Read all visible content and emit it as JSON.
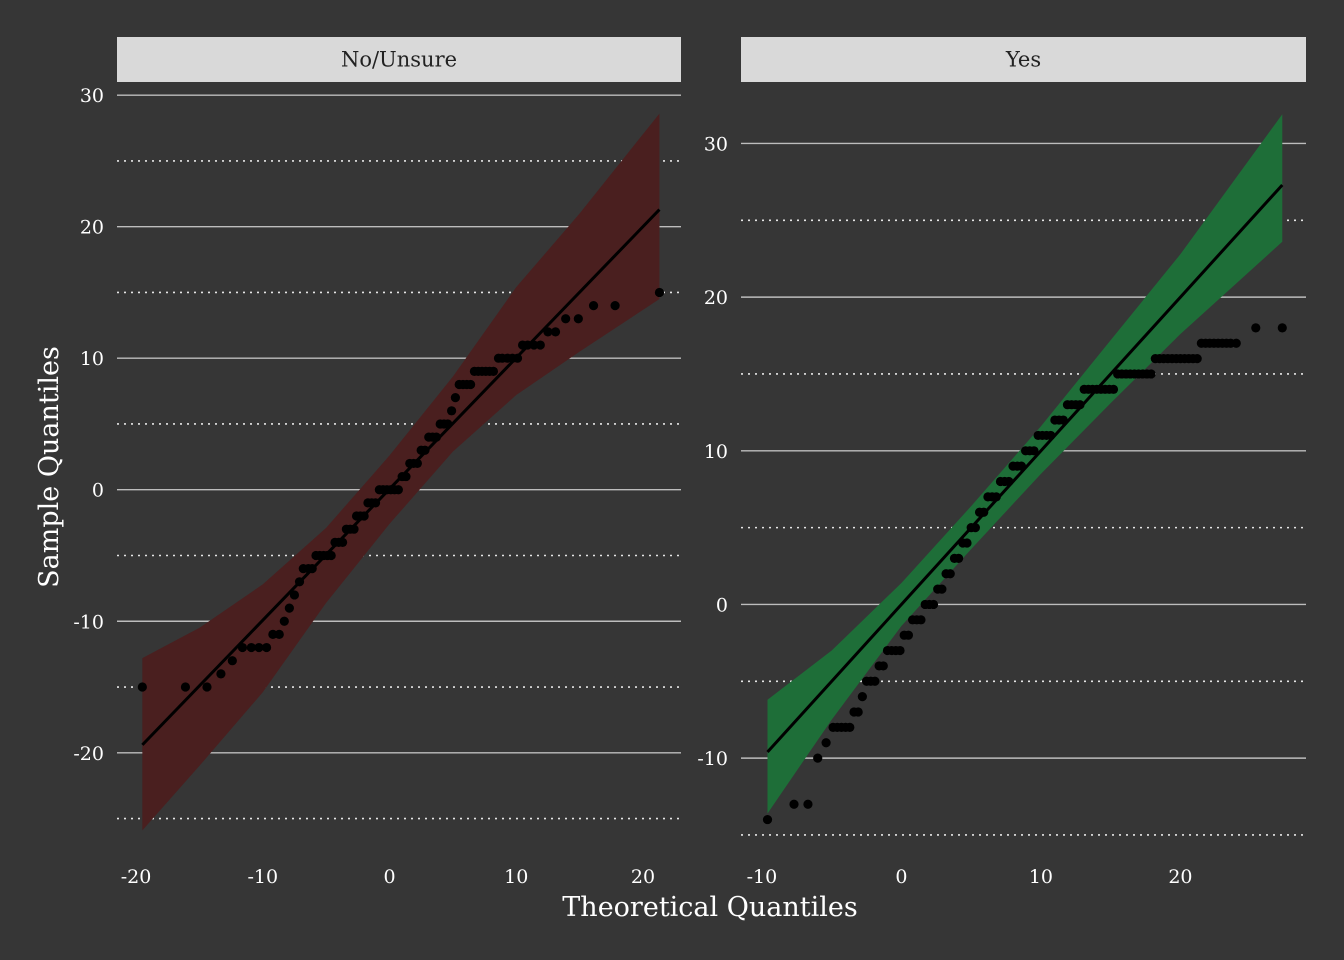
{
  "xlabel": "Theoretical Quantiles",
  "ylabel": "Sample Quantiles",
  "colors": {
    "background": "#363636",
    "strip": "#d9d9d9",
    "grid_major": "#bdbdbd",
    "grid_minor": "#e6e6e6",
    "points": "#000000",
    "line": "#000000"
  },
  "chart_data": [
    {
      "type": "scatter",
      "panel": "No/Unsure",
      "band_color": "#4a1f1f",
      "xlim": [
        -21.5,
        23
      ],
      "ylim": [
        -28,
        31
      ],
      "xticks": [
        -20,
        -10,
        0,
        10,
        20
      ],
      "yticks": [
        -20,
        -10,
        0,
        10,
        20,
        30
      ],
      "yminor": [
        -25,
        -15,
        -5,
        5,
        15,
        25
      ],
      "line": {
        "x": [
          -19.5,
          21.3
        ],
        "y": [
          -19.4,
          21.3
        ]
      },
      "band": [
        {
          "x": -19.5,
          "lo": -25.9,
          "hi": -12.8
        },
        {
          "x": -15,
          "lo": -21.0,
          "hi": -10.5
        },
        {
          "x": -10,
          "lo": -15.4,
          "hi": -7.2
        },
        {
          "x": -5,
          "lo": -8.6,
          "hi": -2.9
        },
        {
          "x": 0,
          "lo": -2.6,
          "hi": 2.6
        },
        {
          "x": 5,
          "lo": 2.9,
          "hi": 8.6
        },
        {
          "x": 10,
          "lo": 7.2,
          "hi": 15.4
        },
        {
          "x": 15,
          "lo": 10.5,
          "hi": 21.0
        },
        {
          "x": 21.3,
          "lo": 14.5,
          "hi": 28.6
        }
      ],
      "points": [
        [
          -19.5,
          -15
        ],
        [
          -16.1,
          -15
        ],
        [
          -14.4,
          -15
        ],
        [
          -13.3,
          -14
        ],
        [
          -12.4,
          -13
        ],
        [
          -11.6,
          -12
        ],
        [
          -10.9,
          -12
        ],
        [
          -10.3,
          -12
        ],
        [
          -9.7,
          -12
        ],
        [
          -9.2,
          -11
        ],
        [
          -8.7,
          -11
        ],
        [
          -8.3,
          -10
        ],
        [
          -7.9,
          -9
        ],
        [
          -7.5,
          -8
        ],
        [
          -7.1,
          -7
        ],
        [
          -6.8,
          -6
        ],
        [
          -6.4,
          -6
        ],
        [
          -6.1,
          -6
        ],
        [
          -5.8,
          -5
        ],
        [
          -5.5,
          -5
        ],
        [
          -5.2,
          -5
        ],
        [
          -4.9,
          -5
        ],
        [
          -4.6,
          -5
        ],
        [
          -4.3,
          -4
        ],
        [
          -4.0,
          -4
        ],
        [
          -3.7,
          -4
        ],
        [
          -3.4,
          -3
        ],
        [
          -3.1,
          -3
        ],
        [
          -2.8,
          -3
        ],
        [
          -2.6,
          -2
        ],
        [
          -2.3,
          -2
        ],
        [
          -2.0,
          -2
        ],
        [
          -1.7,
          -1
        ],
        [
          -1.4,
          -1
        ],
        [
          -1.1,
          -1
        ],
        [
          -0.8,
          0
        ],
        [
          -0.5,
          0
        ],
        [
          -0.2,
          0
        ],
        [
          0.1,
          0
        ],
        [
          0.4,
          0
        ],
        [
          0.7,
          0
        ],
        [
          1.0,
          1
        ],
        [
          1.3,
          1
        ],
        [
          1.6,
          2
        ],
        [
          1.9,
          2
        ],
        [
          2.2,
          2
        ],
        [
          2.5,
          3
        ],
        [
          2.8,
          3
        ],
        [
          3.1,
          4
        ],
        [
          3.4,
          4
        ],
        [
          3.7,
          4
        ],
        [
          4.0,
          5
        ],
        [
          4.3,
          5
        ],
        [
          4.6,
          5
        ],
        [
          4.9,
          6
        ],
        [
          5.2,
          7
        ],
        [
          5.5,
          8
        ],
        [
          5.8,
          8
        ],
        [
          6.1,
          8
        ],
        [
          6.4,
          8
        ],
        [
          6.7,
          9
        ],
        [
          7.0,
          9
        ],
        [
          7.3,
          9
        ],
        [
          7.6,
          9
        ],
        [
          7.9,
          9
        ],
        [
          8.2,
          9
        ],
        [
          8.6,
          10
        ],
        [
          8.9,
          10
        ],
        [
          9.3,
          10
        ],
        [
          9.7,
          10
        ],
        [
          10.1,
          10
        ],
        [
          10.5,
          11
        ],
        [
          10.9,
          11
        ],
        [
          11.4,
          11
        ],
        [
          11.9,
          11
        ],
        [
          12.5,
          12
        ],
        [
          13.1,
          12
        ],
        [
          13.9,
          13
        ],
        [
          14.9,
          13
        ],
        [
          16.1,
          14
        ],
        [
          17.8,
          14
        ],
        [
          21.3,
          15
        ]
      ]
    },
    {
      "type": "scatter",
      "panel": "Yes",
      "band_color": "#1e6e38",
      "xlim": [
        -11.5,
        29
      ],
      "ylim": [
        -16.5,
        34
      ],
      "xticks": [
        -10,
        0,
        10,
        20
      ],
      "yticks": [
        -10,
        0,
        10,
        20,
        30
      ],
      "yminor": [
        -15,
        -5,
        5,
        15,
        25
      ],
      "line": {
        "x": [
          -9.6,
          27.3
        ],
        "y": [
          -9.6,
          27.3
        ]
      },
      "band": [
        {
          "x": -9.6,
          "lo": -13.6,
          "hi": -6.2
        },
        {
          "x": -5,
          "lo": -7.5,
          "hi": -3.0
        },
        {
          "x": 0,
          "lo": -1.4,
          "hi": 1.4
        },
        {
          "x": 5,
          "lo": 3.6,
          "hi": 6.4
        },
        {
          "x": 10,
          "lo": 8.5,
          "hi": 11.6
        },
        {
          "x": 15,
          "lo": 13.1,
          "hi": 17.2
        },
        {
          "x": 20,
          "lo": 17.6,
          "hi": 22.8
        },
        {
          "x": 27.3,
          "lo": 23.6,
          "hi": 31.9
        }
      ],
      "points": [
        [
          -9.6,
          -14
        ],
        [
          -7.7,
          -13
        ],
        [
          -6.7,
          -13
        ],
        [
          -6.0,
          -10
        ],
        [
          -5.4,
          -9
        ],
        [
          -4.9,
          -8
        ],
        [
          -4.6,
          -8
        ],
        [
          -4.3,
          -8
        ],
        [
          -4.0,
          -8
        ],
        [
          -3.7,
          -8
        ],
        [
          -3.4,
          -7
        ],
        [
          -3.1,
          -7
        ],
        [
          -2.8,
          -6
        ],
        [
          -2.5,
          -5
        ],
        [
          -2.2,
          -5
        ],
        [
          -1.9,
          -5
        ],
        [
          -1.6,
          -4
        ],
        [
          -1.3,
          -4
        ],
        [
          -1.0,
          -3
        ],
        [
          -0.7,
          -3
        ],
        [
          -0.4,
          -3
        ],
        [
          -0.1,
          -3
        ],
        [
          0.2,
          -2
        ],
        [
          0.5,
          -2
        ],
        [
          0.8,
          -1
        ],
        [
          1.1,
          -1
        ],
        [
          1.4,
          -1
        ],
        [
          1.7,
          0
        ],
        [
          2.0,
          0
        ],
        [
          2.3,
          0
        ],
        [
          2.6,
          1
        ],
        [
          2.9,
          1
        ],
        [
          3.2,
          2
        ],
        [
          3.5,
          2
        ],
        [
          3.8,
          3
        ],
        [
          4.1,
          3
        ],
        [
          4.4,
          4
        ],
        [
          4.7,
          4
        ],
        [
          5.0,
          5
        ],
        [
          5.3,
          5
        ],
        [
          5.6,
          6
        ],
        [
          5.9,
          6
        ],
        [
          6.2,
          7
        ],
        [
          6.5,
          7
        ],
        [
          6.8,
          7
        ],
        [
          7.1,
          8
        ],
        [
          7.4,
          8
        ],
        [
          7.7,
          8
        ],
        [
          8.0,
          9
        ],
        [
          8.3,
          9
        ],
        [
          8.6,
          9
        ],
        [
          8.9,
          10
        ],
        [
          9.2,
          10
        ],
        [
          9.5,
          10
        ],
        [
          9.8,
          11
        ],
        [
          10.1,
          11
        ],
        [
          10.4,
          11
        ],
        [
          10.7,
          11
        ],
        [
          11.0,
          12
        ],
        [
          11.3,
          12
        ],
        [
          11.6,
          12
        ],
        [
          11.9,
          13
        ],
        [
          12.2,
          13
        ],
        [
          12.5,
          13
        ],
        [
          12.8,
          13
        ],
        [
          13.1,
          14
        ],
        [
          13.4,
          14
        ],
        [
          13.7,
          14
        ],
        [
          14.0,
          14
        ],
        [
          14.3,
          14
        ],
        [
          14.6,
          14
        ],
        [
          14.9,
          14
        ],
        [
          15.2,
          14
        ],
        [
          15.5,
          15
        ],
        [
          15.8,
          15
        ],
        [
          16.1,
          15
        ],
        [
          16.4,
          15
        ],
        [
          16.7,
          15
        ],
        [
          17.0,
          15
        ],
        [
          17.3,
          15
        ],
        [
          17.6,
          15
        ],
        [
          17.9,
          15
        ],
        [
          18.2,
          16
        ],
        [
          18.5,
          16
        ],
        [
          18.8,
          16
        ],
        [
          19.1,
          16
        ],
        [
          19.4,
          16
        ],
        [
          19.7,
          16
        ],
        [
          20.0,
          16
        ],
        [
          20.3,
          16
        ],
        [
          20.6,
          16
        ],
        [
          20.9,
          16
        ],
        [
          21.2,
          16
        ],
        [
          21.5,
          17
        ],
        [
          21.8,
          17
        ],
        [
          22.1,
          17
        ],
        [
          22.4,
          17
        ],
        [
          22.7,
          17
        ],
        [
          23.0,
          17
        ],
        [
          23.3,
          17
        ],
        [
          23.6,
          17
        ],
        [
          24.0,
          17
        ],
        [
          25.4,
          18
        ],
        [
          27.3,
          18
        ]
      ]
    }
  ]
}
